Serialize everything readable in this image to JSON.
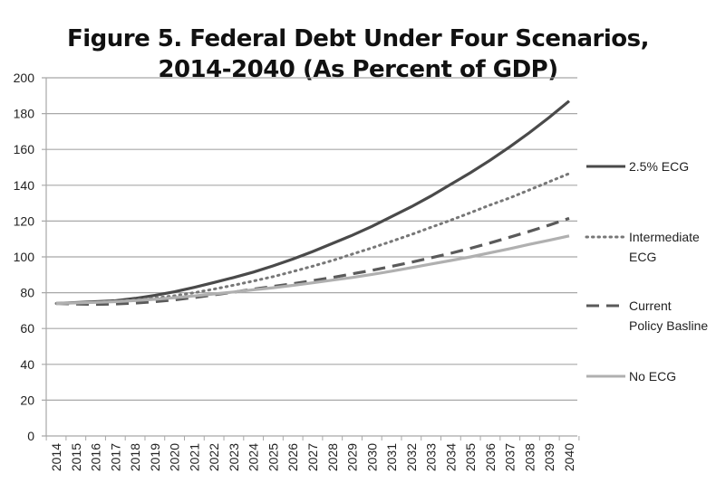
{
  "chart_data": {
    "type": "line",
    "title_line1": "Figure 5. Federal Debt Under Four Scenarios,",
    "title_line2": "2014-2040 (As Percent of GDP)",
    "xlabel": "",
    "ylabel": "",
    "ylim": [
      0,
      200
    ],
    "yticks": [
      0,
      20,
      40,
      60,
      80,
      100,
      120,
      140,
      160,
      180,
      200
    ],
    "grid": true,
    "legend_position": "right",
    "x": [
      2014,
      2015,
      2016,
      2017,
      2018,
      2019,
      2020,
      2021,
      2022,
      2023,
      2024,
      2025,
      2026,
      2027,
      2028,
      2029,
      2030,
      2031,
      2032,
      2033,
      2034,
      2035,
      2036,
      2037,
      2038,
      2039,
      2040
    ],
    "series": [
      {
        "name": "2.5% ECG",
        "style": "solid",
        "color": "#4a4a4a",
        "values": [
          74,
          74.5,
          75,
          75.5,
          76.8,
          78.5,
          80.5,
          83,
          85.7,
          88.5,
          91.5,
          95,
          98.8,
          103,
          107.5,
          112,
          117,
          122.5,
          128,
          134,
          140.5,
          147,
          154,
          161.5,
          169.5,
          178,
          187
        ]
      },
      {
        "name": "Intermediate ECG",
        "style": "dotted",
        "color": "#777777",
        "values": [
          74,
          74.3,
          74.7,
          75.2,
          76,
          77,
          78.3,
          80,
          82,
          84.2,
          86.5,
          89,
          91.8,
          94.8,
          98,
          101.5,
          105,
          108.7,
          112.5,
          116.5,
          120.5,
          124.7,
          129,
          133,
          137.5,
          142,
          146.5
        ]
      },
      {
        "name": "Current Policy Basline",
        "style": "dashed",
        "color": "#5a5a5a",
        "values": [
          74,
          73.7,
          73.5,
          73.7,
          74.2,
          75,
          76,
          77.3,
          78.8,
          80.3,
          82,
          83.5,
          85,
          86.7,
          88.5,
          90.5,
          92.5,
          94.7,
          97,
          99.5,
          102,
          104.8,
          107.8,
          111,
          114.3,
          117.8,
          121.5
        ]
      },
      {
        "name": "No ECG",
        "style": "solid",
        "color": "#b0b0b0",
        "values": [
          74,
          74.3,
          74.6,
          75,
          75.6,
          76.3,
          77.2,
          78.2,
          79.3,
          80.4,
          81.6,
          82.8,
          84.1,
          85.5,
          87,
          88.5,
          90.2,
          92,
          94,
          96,
          98,
          100,
          102.3,
          104.6,
          107,
          109.3,
          111.7
        ]
      }
    ],
    "legend_lines": [
      [
        "2.5% ECG"
      ],
      [
        "Intermediate",
        "ECG"
      ],
      [
        "Current",
        "Policy Basline"
      ],
      [
        "No ECG"
      ]
    ]
  }
}
